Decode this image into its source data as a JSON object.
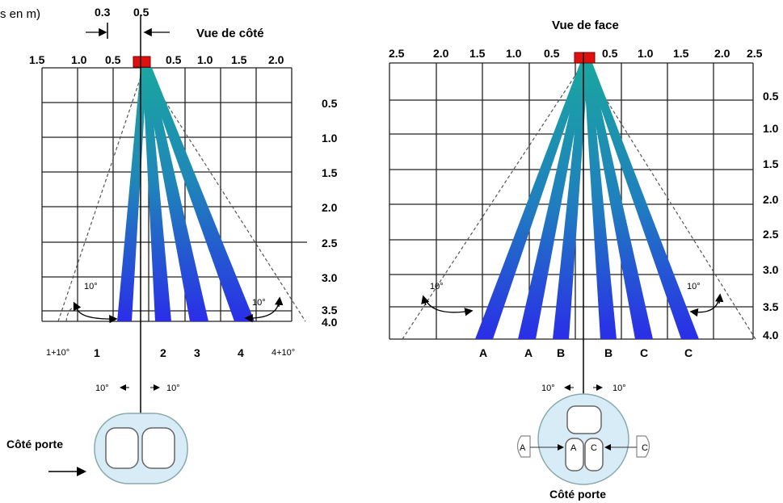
{
  "header": {
    "units_label": "s en m)"
  },
  "colors": {
    "beam_top": "#1a9fa0",
    "beam_bottom": "#2a2ee0",
    "sensor": "#e01010",
    "grid": "#222222",
    "sensor_body": "#d8ecf8"
  },
  "side_view": {
    "title": "Vue de côté",
    "offset_labels": [
      "0.3",
      "0.5"
    ],
    "top_ticks": [
      "1.5",
      "1.0",
      "0.5",
      "0.5",
      "1.0",
      "1.5",
      "2.0"
    ],
    "right_ticks": [
      "0.5",
      "1.0",
      "1.5",
      "2.0",
      "2.5",
      "3.0",
      "3.5",
      "4.0"
    ],
    "beam_labels": [
      "1",
      "2",
      "3",
      "4"
    ],
    "edge_labels": [
      "1+10°",
      "4+10°"
    ],
    "angle_left": "10°",
    "angle_right": "10°",
    "rotation_left": "10°",
    "rotation_right": "10°",
    "door_label": "Côté porte"
  },
  "front_view": {
    "title": "Vue de face",
    "top_ticks": [
      "2.5",
      "2.0",
      "1.5",
      "1.0",
      "0.5",
      "0.5",
      "1.0",
      "1.5",
      "2.0",
      "2.5"
    ],
    "right_ticks": [
      "0.5",
      "1.0",
      "1.5",
      "2.0",
      "2.5",
      "3.0",
      "3.5",
      "4.0"
    ],
    "beam_labels": [
      "A",
      "A",
      "B",
      "B",
      "C",
      "C"
    ],
    "angle_left": "10°",
    "angle_right": "10°",
    "rotation_left": "10°",
    "rotation_right": "10°",
    "sensor_letters": [
      "A",
      "A",
      "C",
      "C"
    ],
    "door_label": "Côté porte"
  }
}
